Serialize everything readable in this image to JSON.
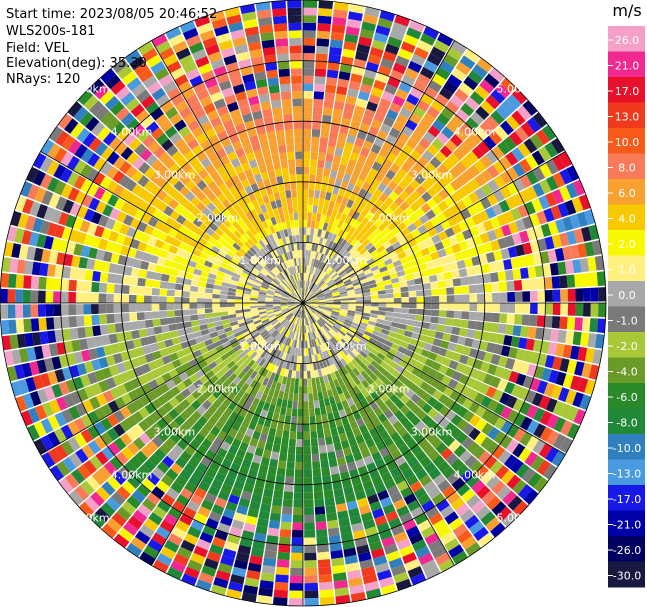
{
  "header": {
    "start_time": "Start time: 2023/08/05 20:46:52",
    "site": "WLS200s-181",
    "field": "Field: VEL",
    "elevation": "Elevation(deg): 35.30",
    "nrays": "NRays: 120"
  },
  "chart_data": {
    "type": "heatmap",
    "projection": "polar-ppi",
    "field": "VEL",
    "units": "m/s",
    "n_rays": 120,
    "range_rings_km": [
      1.0,
      2.0,
      3.0,
      4.0,
      5.0
    ],
    "ring_labels_nw": [
      "1.00km",
      "2.00km",
      "3.00km",
      "4.00km",
      "5.00km"
    ],
    "ring_labels_ne": [
      "1.00km",
      "2.00km",
      "3.00km",
      "4.00km",
      "5.00km"
    ],
    "ring_labels_sw": [
      "1.00km",
      "2.00km",
      "3.00km",
      "4.00km",
      "5.00km"
    ],
    "ring_labels_se": [
      "1.00km",
      "2.00km",
      "3.00km",
      "4.00km",
      "5.00km"
    ],
    "colorbar": {
      "unit_label": "m/s",
      "ticks": [
        "26.0",
        "21.0",
        "17.0",
        "13.0",
        "10.0",
        "8.0",
        "6.0",
        "4.0",
        "2.0",
        "1.0",
        "0.0",
        "-1.0",
        "-2.0",
        "-4.0",
        "-6.0",
        "-8.0",
        "-10.0",
        "-13.0",
        "-17.0",
        "-21.0",
        "-26.0",
        "-30.0"
      ],
      "colors": [
        "#f5a0c8",
        "#f02890",
        "#e8102a",
        "#f03a1e",
        "#f85a1a",
        "#f87a58",
        "#f8a030",
        "#f8c800",
        "#f8f800",
        "#fff080",
        "#a8a8a8",
        "#7a7a7a",
        "#a8c838",
        "#6a9a28",
        "#2a8a2a",
        "#208838",
        "#3080c0",
        "#4a9ae0",
        "#1818e8",
        "#0000a8",
        "#000060",
        "#181840"
      ]
    },
    "range_extent_km": 5.0
  }
}
